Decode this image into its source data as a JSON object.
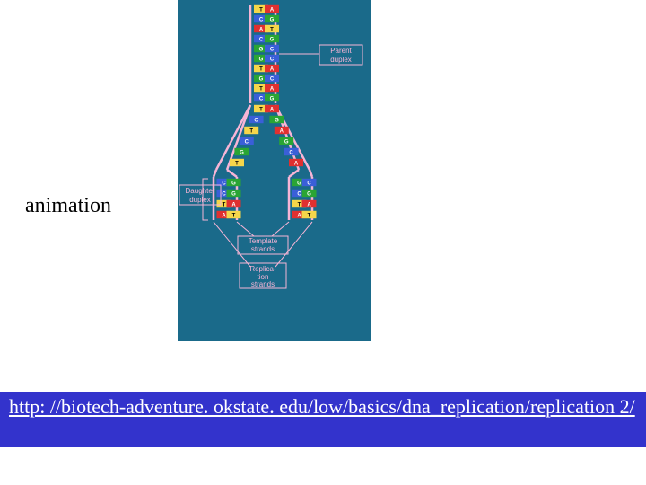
{
  "label": "animation",
  "link_text": "http: //biotech-adventure. okstate. edu/low/basics/dna_replication/replication 2/",
  "figure": {
    "background_color": "#1a6a8a",
    "backbone_color": "#f7b5d6",
    "annotation_color": "#f7b5d6",
    "annotations": {
      "parent_duplex": "Parent\nduplex",
      "daughter_duplex": "Daughter\nduplex",
      "template_strands": "Template\nstrands",
      "replication_strands": "Replica-\ntion\nstrands"
    },
    "base_colors": {
      "A_bg": "#e03030",
      "A_fg": "#ffffff",
      "T_bg": "#f5d64a",
      "T_fg": "#000000",
      "G_bg": "#2aa534",
      "G_fg": "#ffffff",
      "C_bg": "#3a5fd8",
      "C_fg": "#ffffff"
    },
    "parent_pairs": [
      "TA",
      "CG",
      "AT",
      "CG",
      "GC",
      "GC",
      "TA",
      "GC",
      "TA",
      "CG"
    ],
    "fork_pairs": [
      "TA",
      "CG",
      "TA",
      "CG",
      "GC",
      "TA"
    ],
    "left_child_pairs": [
      "CG",
      "CG",
      "TA",
      "AT"
    ],
    "right_child_pairs": [
      "GC",
      "CG",
      "TA",
      "AT"
    ]
  },
  "link_bar_bg": "#3333cc",
  "link_text_color": "#ffffff"
}
